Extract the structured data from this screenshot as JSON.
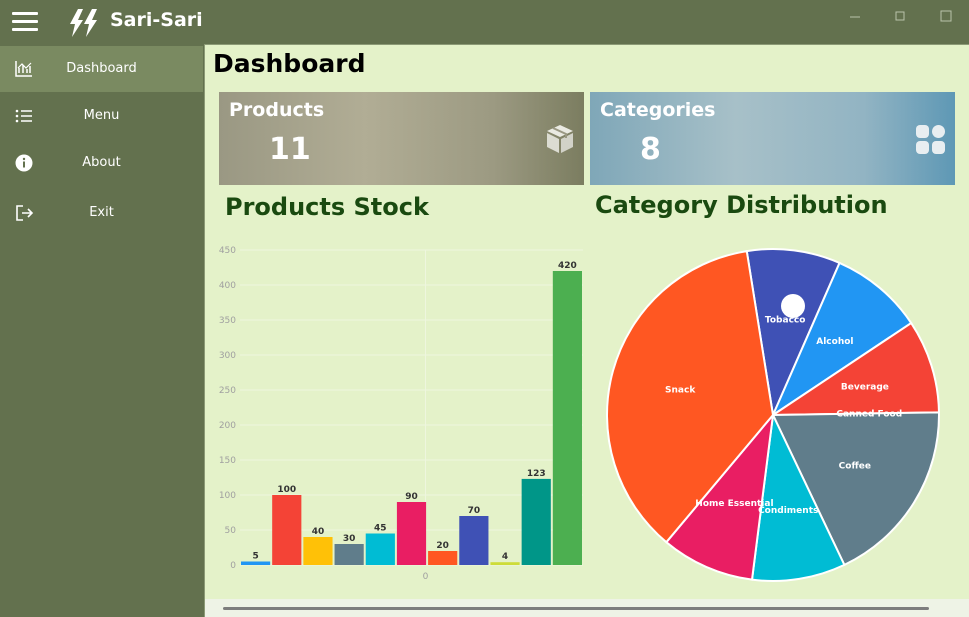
{
  "app": {
    "title": "Sari-Sari"
  },
  "icons": {
    "menu": "hamburger-icon",
    "logo": "lightning-logo",
    "minimize": "minimize-icon",
    "maximize": "maximize-icon",
    "close": "close-icon",
    "dashboard": "chart-icon",
    "menu_item": "list-icon",
    "about": "info-icon",
    "exit": "exit-icon",
    "products": "box-icon",
    "categories": "grid-icon"
  },
  "sidebar": {
    "items": [
      {
        "label": "Dashboard",
        "icon": "chart-icon",
        "active": true
      },
      {
        "label": "Menu",
        "icon": "list-icon",
        "active": false
      },
      {
        "label": "About",
        "icon": "info-icon",
        "active": false
      },
      {
        "label": "Exit",
        "icon": "exit-icon",
        "active": false
      }
    ]
  },
  "main": {
    "title": "Dashboard",
    "cards": [
      {
        "title": "Products",
        "value": "11"
      },
      {
        "title": "Categories",
        "value": "8"
      }
    ],
    "stock_title": "Products Stock",
    "distribution_title": "Category Distribution"
  },
  "colors": {
    "sidebar": "#63714e",
    "sidebar_active": "#7a8a61",
    "content_bg": "#e4f2c9",
    "section_title": "#1a4a10"
  },
  "chart_data": [
    {
      "type": "bar",
      "title": "Products Stock",
      "xlabel": "",
      "ylabel": "",
      "x_tick_labels": [
        "0"
      ],
      "ylim": [
        0,
        450
      ],
      "yticks": [
        0,
        50,
        100,
        150,
        200,
        250,
        300,
        350,
        400,
        450
      ],
      "grid": true,
      "values": [
        5,
        100,
        40,
        30,
        45,
        90,
        20,
        70,
        4,
        123,
        420
      ],
      "colors": [
        "#2196f3",
        "#f44336",
        "#ffc107",
        "#607d8b",
        "#00bcd4",
        "#e91e63",
        "#ff5722",
        "#3f51b5",
        "#cddc39",
        "#009688",
        "#4caf50"
      ]
    },
    {
      "type": "pie",
      "title": "Category Distribution",
      "start_angle_deg": -9.1,
      "slices": [
        {
          "label": "Tobacco",
          "value": 1,
          "color": "#3f51b5"
        },
        {
          "label": "Alcohol",
          "value": 1,
          "color": "#2196f3"
        },
        {
          "label": "Beverage",
          "value": 1,
          "color": "#f44336"
        },
        {
          "label": "Canned Food",
          "value": 0,
          "color": "#ffc107"
        },
        {
          "label": "Coffee",
          "value": 2,
          "color": "#607d8b"
        },
        {
          "label": "Condiments",
          "value": 1,
          "color": "#00bcd4"
        },
        {
          "label": "Home Essential",
          "value": 1,
          "color": "#e91e63"
        },
        {
          "label": "Snack",
          "value": 4,
          "color": "#ff5722"
        }
      ]
    }
  ]
}
